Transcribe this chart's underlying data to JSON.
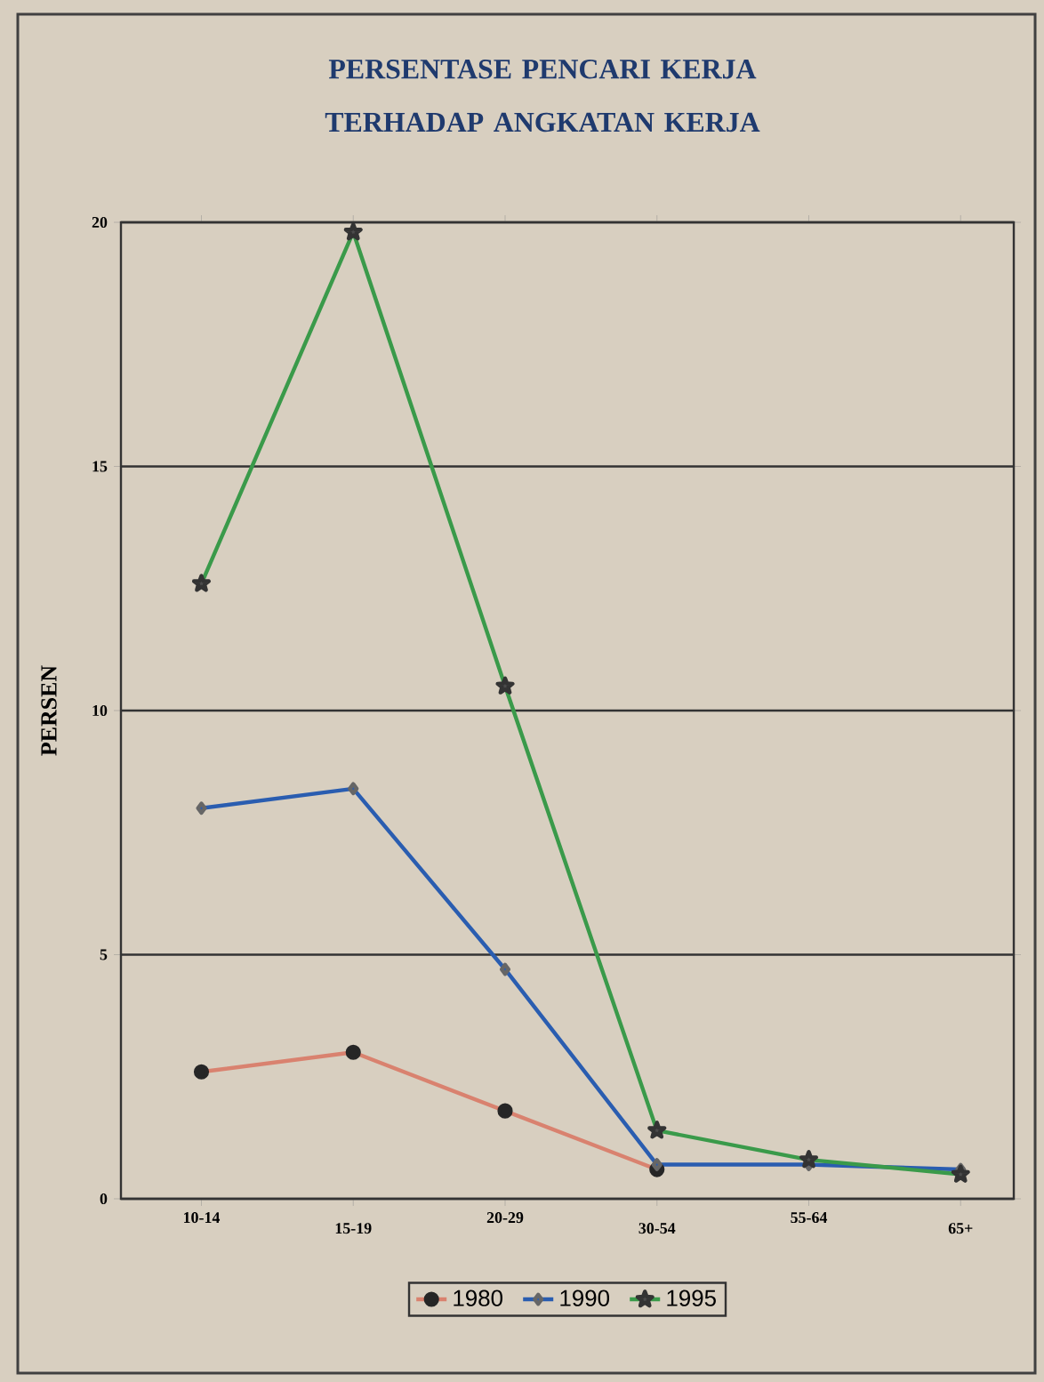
{
  "chart_data": {
    "type": "line",
    "title": "PERSENTASE PENCARI KERJA TERHADAP ANGKATAN KERJA",
    "ylabel": "PERSEN",
    "categories": [
      "10-14",
      "15-19",
      "20-29",
      "30-54",
      "55-64",
      "65+"
    ],
    "series": [
      {
        "name": "1980",
        "color": "#d9826f",
        "marker": "circle",
        "values": [
          2.6,
          3.0,
          1.8,
          0.6,
          null,
          null
        ]
      },
      {
        "name": "1990",
        "color": "#2a5db0",
        "marker": "diamond",
        "values": [
          8.0,
          8.4,
          4.7,
          0.7,
          0.7,
          0.6
        ]
      },
      {
        "name": "1995",
        "color": "#3a9a4a",
        "marker": "star",
        "values": [
          12.6,
          19.8,
          10.5,
          1.4,
          0.8,
          0.5
        ]
      }
    ],
    "ylim": [
      0,
      20
    ],
    "yticks": [
      0,
      5,
      10,
      15,
      20
    ],
    "grid": "y",
    "legend": "bottom"
  }
}
